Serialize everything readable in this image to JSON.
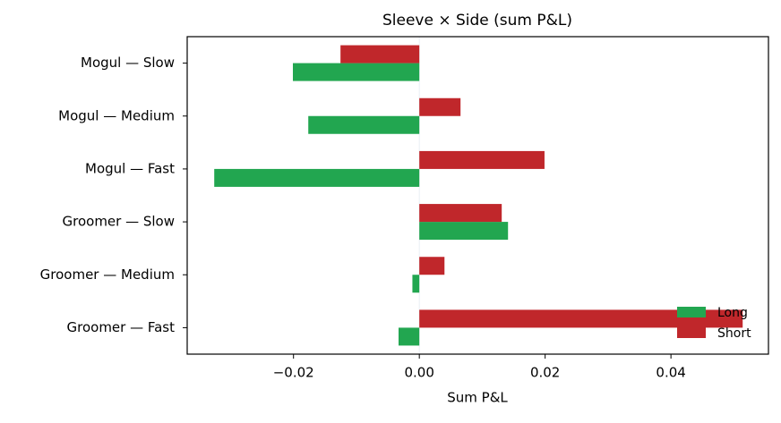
{
  "chart_data": {
    "type": "hbar",
    "title": "Sleeve × Side (sum P&L)",
    "x_label": "Sum P&L",
    "categories": [
      "Mogul — Slow",
      "Mogul — Medium",
      "Mogul — Fast",
      "Groomer — Slow",
      "Groomer — Medium",
      "Groomer — Fast"
    ],
    "series": [
      {
        "name": "Long",
        "color": "#22a650",
        "values": [
          -0.0201,
          -0.01765,
          -0.0326,
          0.0141,
          -0.0011,
          -0.0033
        ]
      },
      {
        "name": "Short",
        "color": "#c0272b",
        "values": [
          -0.01253,
          0.00655,
          0.0199,
          0.0131,
          0.004,
          0.0514
        ]
      }
    ],
    "xlim": [
      -0.0369,
      0.0555
    ],
    "xticks": [
      {
        "value": -0.02,
        "label": "−0.02"
      },
      {
        "value": 0,
        "label": "0.00"
      },
      {
        "value": 0.02,
        "label": "0.02"
      },
      {
        "value": 0.04,
        "label": "0.04"
      }
    ],
    "legend": "lower right"
  }
}
